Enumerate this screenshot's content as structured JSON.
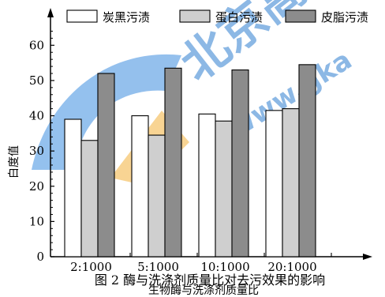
{
  "chart_data": {
    "type": "bar",
    "title": "",
    "xlabel": "生物酶与洗涤剂质量比",
    "ylabel": "白度值",
    "categories": [
      "2:1000",
      "5:1000",
      "10:1000",
      "20:1000"
    ],
    "series": [
      {
        "name": "炭黑污渍",
        "values": [
          39,
          40,
          40.5,
          41.5
        ],
        "color": "#ffffff"
      },
      {
        "name": "蛋白污渍",
        "values": [
          33,
          34.5,
          38.5,
          42
        ],
        "color": "#cfcfcf"
      },
      {
        "name": "皮脂污渍",
        "values": [
          52,
          53.5,
          53,
          54.5
        ],
        "color": "#8c8c8c"
      }
    ],
    "ylim": [
      0,
      65
    ],
    "yticks": [
      0,
      10,
      20,
      30,
      40,
      50,
      60
    ],
    "grid": false,
    "legend_position": "top"
  },
  "caption": "图 2  酶与洗涤剂质量比对去污效果的影响",
  "watermark": {
    "text": "北京高考",
    "url_text": "www.gka",
    "colors": [
      "#2a7fd4",
      "#f3b23c"
    ]
  }
}
